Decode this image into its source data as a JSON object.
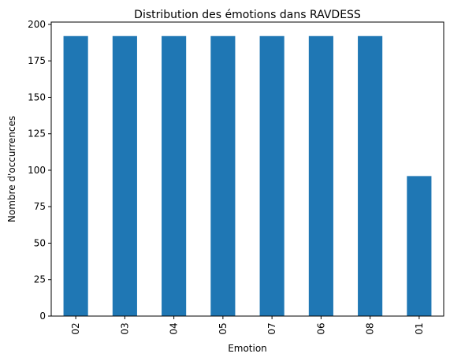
{
  "chart_data": {
    "type": "bar",
    "title": "Distribution des émotions dans RAVDESS",
    "xlabel": "Emotion",
    "ylabel": "Nombre d'occurrences",
    "categories": [
      "02",
      "03",
      "04",
      "05",
      "07",
      "06",
      "08",
      "01"
    ],
    "values": [
      192,
      192,
      192,
      192,
      192,
      192,
      192,
      96
    ],
    "ylim": [
      0,
      201.6
    ],
    "yticks": [
      0,
      25,
      50,
      75,
      100,
      125,
      150,
      175,
      200
    ],
    "bar_color": "#1f77b4",
    "grid": false,
    "legend": "none"
  }
}
